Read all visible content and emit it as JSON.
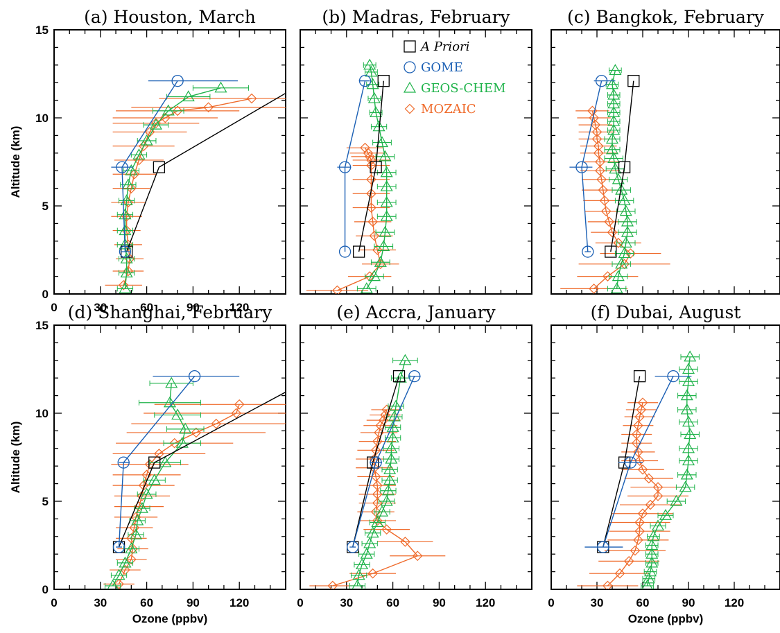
{
  "colors": {
    "apriori": "#000000",
    "gome": "#1a5fb4",
    "geoschem": "#1fb34a",
    "mozaic": "#ef6a2a"
  },
  "legend": [
    {
      "key": "apriori",
      "label": "A Priori",
      "marker": "square",
      "italic": true
    },
    {
      "key": "gome",
      "label": "GOME",
      "marker": "circle",
      "italic": false
    },
    {
      "key": "geoschem",
      "label": "GEOS-CHEM",
      "marker": "triangle",
      "italic": false
    },
    {
      "key": "mozaic",
      "label": "MOZAIC",
      "marker": "diamond",
      "italic": false
    }
  ],
  "chart_data": [
    {
      "type": "line",
      "title": "(a) Houston, March",
      "ylabel": "Altitude (km)",
      "xlabel": "",
      "xlim": [
        0,
        150
      ],
      "ylim": [
        0,
        15
      ],
      "xticks": [
        "0",
        "30",
        "60",
        "90",
        "120"
      ],
      "yticks": [
        "0",
        "5",
        "10",
        "15"
      ],
      "series": [
        {
          "key": "apriori",
          "x": [
            47,
            68,
            150
          ],
          "y": [
            2.4,
            7.2,
            11.4
          ],
          "marker_count": 2
        },
        {
          "key": "gome",
          "x": [
            46,
            44,
            80
          ],
          "y": [
            2.4,
            7.2,
            12.1
          ],
          "xerr": [
            [
              43,
              49
            ],
            [
              37,
              51
            ],
            [
              61,
              119
            ]
          ]
        },
        {
          "key": "geoschem",
          "x": [
            46,
            47,
            47,
            46,
            46,
            46,
            47,
            48,
            50,
            55,
            60,
            66,
            74,
            87,
            108
          ],
          "y": [
            0.3,
            1.2,
            2.0,
            2.8,
            3.6,
            4.5,
            5.3,
            6.2,
            7.0,
            7.9,
            8.7,
            9.6,
            10.4,
            11.2,
            11.7
          ],
          "xerr_half": [
            5,
            5,
            5,
            5,
            5,
            5,
            5,
            5,
            5,
            5,
            6,
            8,
            10,
            14,
            18
          ]
        },
        {
          "key": "mozaic",
          "x": [
            45,
            48,
            49,
            48,
            47,
            47,
            48,
            50,
            52,
            55,
            58,
            62,
            66,
            72,
            80,
            100,
            128
          ],
          "y": [
            0.5,
            1.3,
            2.0,
            2.8,
            3.6,
            4.4,
            5.2,
            6.0,
            6.8,
            7.6,
            8.4,
            9.2,
            9.7,
            10.0,
            10.4,
            10.6,
            11.1
          ],
          "xerr_half": [
            12,
            10,
            9,
            9,
            9,
            10,
            11,
            12,
            14,
            16,
            20,
            24,
            28,
            34,
            40,
            50,
            60
          ]
        }
      ]
    },
    {
      "type": "line",
      "title": "(b) Madras, February",
      "ylabel": "",
      "xlabel": "",
      "xlim": [
        0,
        150
      ],
      "ylim": [
        0,
        15
      ],
      "xticks": [],
      "yticks": [],
      "series": [
        {
          "key": "apriori",
          "x": [
            38,
            49,
            54
          ],
          "y": [
            2.4,
            7.2,
            12.1
          ]
        },
        {
          "key": "gome",
          "x": [
            29,
            29,
            42
          ],
          "y": [
            2.4,
            7.2,
            12.1
          ],
          "xerr": [
            [
              29,
              29
            ],
            [
              24,
              33
            ],
            [
              38,
              45
            ]
          ]
        },
        {
          "key": "geoschem",
          "x": [
            43,
            48,
            52,
            54,
            55,
            56,
            56,
            56,
            56,
            55,
            53,
            51,
            49,
            48,
            47,
            46,
            45
          ],
          "y": [
            0.3,
            1.0,
            1.8,
            2.7,
            3.5,
            4.4,
            5.2,
            6.1,
            6.9,
            7.8,
            8.6,
            9.5,
            10.3,
            11.1,
            11.9,
            12.6,
            13.0
          ],
          "xerr_half": [
            6,
            6,
            6,
            6,
            6,
            6,
            6,
            6,
            6,
            6,
            6,
            5,
            4,
            4,
            4,
            4,
            4
          ]
        },
        {
          "key": "mozaic",
          "x": [
            24,
            45,
            52,
            50,
            48,
            47,
            46,
            46,
            46,
            46,
            46,
            45,
            44,
            42
          ],
          "y": [
            0.2,
            1.0,
            1.7,
            2.5,
            3.3,
            4.1,
            4.9,
            5.7,
            6.5,
            7.3,
            7.6,
            7.8,
            8.0,
            8.3
          ],
          "xerr_half": [
            20,
            14,
            12,
            12,
            12,
            12,
            12,
            12,
            12,
            12,
            12,
            12,
            12,
            12
          ]
        }
      ]
    },
    {
      "type": "line",
      "title": "(c) Bangkok, February",
      "ylabel": "",
      "xlabel": "",
      "xlim": [
        0,
        150
      ],
      "ylim": [
        0,
        15
      ],
      "xticks": [],
      "yticks": [],
      "series": [
        {
          "key": "apriori",
          "x": [
            39,
            48,
            54
          ],
          "y": [
            2.4,
            7.2,
            12.1
          ]
        },
        {
          "key": "gome",
          "x": [
            24,
            20,
            33
          ],
          "y": [
            2.4,
            7.2,
            12.1
          ],
          "xerr": [
            [
              22,
              26
            ],
            [
              12,
              27
            ],
            [
              28,
              42
            ]
          ]
        },
        {
          "key": "geoschem",
          "x": [
            43,
            44,
            46,
            48,
            49,
            50,
            50,
            49,
            48,
            46,
            44,
            42,
            41,
            40,
            40,
            41,
            41,
            41,
            41,
            41,
            40,
            42
          ],
          "y": [
            0.3,
            1.0,
            1.7,
            2.3,
            2.9,
            3.5,
            4.1,
            4.7,
            5.3,
            5.9,
            6.5,
            7.1,
            7.7,
            8.2,
            8.8,
            9.3,
            9.8,
            10.3,
            10.8,
            11.3,
            11.9,
            12.7
          ],
          "xerr_half": [
            6,
            6,
            6,
            6,
            6,
            6,
            6,
            6,
            6,
            6,
            6,
            6,
            6,
            5,
            5,
            4,
            4,
            4,
            4,
            4,
            4,
            4
          ]
        },
        {
          "key": "mozaic",
          "x": [
            28,
            37,
            48,
            52,
            44,
            40,
            38,
            36,
            35,
            34,
            33,
            32,
            32,
            31,
            31,
            30,
            30,
            29,
            28,
            27
          ],
          "y": [
            0.3,
            1.0,
            1.7,
            2.3,
            2.9,
            3.5,
            4.1,
            4.7,
            5.3,
            5.9,
            6.5,
            7.0,
            7.5,
            8.0,
            8.4,
            8.8,
            9.2,
            9.6,
            10.0,
            10.4
          ],
          "xerr_half": [
            22,
            20,
            30,
            20,
            15,
            14,
            14,
            14,
            14,
            14,
            13,
            13,
            12,
            12,
            12,
            12,
            12,
            11,
            11,
            11
          ]
        }
      ]
    },
    {
      "type": "line",
      "title": "(d) Shanghai, February",
      "ylabel": "Altitude (km)",
      "xlabel": "Ozone (ppbv)",
      "xlim": [
        0,
        150
      ],
      "ylim": [
        0,
        15
      ],
      "xticks": [
        "0",
        "30",
        "60",
        "90",
        "120"
      ],
      "yticks": [
        "0",
        "5",
        "10",
        "15"
      ],
      "series": [
        {
          "key": "apriori",
          "x": [
            42,
            65,
            150
          ],
          "y": [
            2.4,
            7.2,
            11.2
          ],
          "marker_count": 2
        },
        {
          "key": "gome",
          "x": [
            42,
            45,
            91
          ],
          "y": [
            2.4,
            7.2,
            12.1
          ],
          "xerr": [
            [
              40,
              44
            ],
            [
              42,
              49
            ],
            [
              64,
              120
            ]
          ]
        },
        {
          "key": "geoschem",
          "x": [
            38,
            42,
            46,
            50,
            53,
            54,
            57,
            60,
            65,
            72,
            83,
            85,
            80,
            75,
            76
          ],
          "y": [
            0.2,
            0.8,
            1.5,
            2.3,
            3.1,
            3.9,
            4.6,
            5.4,
            6.2,
            7.2,
            8.3,
            9.1,
            9.9,
            10.6,
            11.7
          ],
          "xerr_half": [
            5,
            5,
            5,
            5,
            5,
            5,
            5,
            6,
            7,
            10,
            12,
            12,
            15,
            20,
            14
          ]
        },
        {
          "key": "mozaic",
          "x": [
            42,
            46,
            50,
            51,
            50,
            52,
            53,
            55,
            57,
            58,
            60,
            62,
            68,
            78,
            92,
            105,
            118,
            120
          ],
          "y": [
            0.3,
            1.1,
            1.7,
            2.3,
            2.9,
            3.5,
            4.1,
            4.7,
            5.3,
            5.9,
            6.5,
            7.1,
            7.7,
            8.3,
            8.9,
            9.4,
            10.0,
            10.5
          ],
          "xerr_half": [
            10,
            10,
            10,
            10,
            10,
            12,
            14,
            16,
            18,
            20,
            22,
            25,
            30,
            38,
            45,
            55,
            60,
            55
          ]
        }
      ]
    },
    {
      "type": "line",
      "title": "(e) Accra, January",
      "ylabel": "",
      "xlabel": "",
      "xlim": [
        0,
        150
      ],
      "ylim": [
        0,
        15
      ],
      "xticks": [
        "0",
        "30",
        "60",
        "90",
        "120"
      ],
      "yticks": [],
      "series": [
        {
          "key": "apriori",
          "x": [
            34,
            47,
            64
          ],
          "y": [
            2.4,
            7.2,
            12.1
          ]
        },
        {
          "key": "gome",
          "x": [
            34,
            49,
            74
          ],
          "y": [
            2.4,
            7.2,
            12.1
          ],
          "xerr": [
            [
              32,
              36
            ],
            [
              45,
              53
            ],
            [
              70,
              78
            ]
          ]
        },
        {
          "key": "geoschem",
          "x": [
            37,
            38,
            40,
            43,
            45,
            47,
            50,
            53,
            56,
            57,
            58,
            58,
            59,
            59,
            60,
            60,
            61,
            62,
            65,
            68
          ],
          "y": [
            0.2,
            0.8,
            1.4,
            2.0,
            2.6,
            3.2,
            3.8,
            4.4,
            5.0,
            5.6,
            6.2,
            6.8,
            7.4,
            8.0,
            8.6,
            9.2,
            9.8,
            10.4,
            12.0,
            13.0
          ],
          "xerr_half": [
            5,
            5,
            5,
            5,
            5,
            5,
            5,
            5,
            5,
            5,
            5,
            5,
            5,
            5,
            5,
            5,
            5,
            5,
            6,
            8
          ]
        },
        {
          "key": "mozaic",
          "x": [
            21,
            47,
            76,
            68,
            56,
            50,
            49,
            50,
            50,
            50,
            49,
            48,
            48,
            49,
            50,
            51,
            52,
            54,
            55,
            56
          ],
          "y": [
            0.2,
            0.9,
            1.9,
            2.7,
            3.4,
            3.9,
            4.4,
            4.9,
            5.4,
            5.9,
            6.4,
            6.9,
            7.4,
            7.9,
            8.4,
            8.9,
            9.3,
            9.6,
            9.9,
            10.2
          ],
          "xerr_half": [
            15,
            15,
            18,
            18,
            15,
            12,
            12,
            12,
            12,
            12,
            12,
            12,
            12,
            12,
            12,
            12,
            11,
            11,
            10,
            10
          ]
        }
      ]
    },
    {
      "type": "line",
      "title": "(f) Dubai, August",
      "ylabel": "",
      "xlabel": "Ozone (ppbv)",
      "xlim": [
        0,
        150
      ],
      "ylim": [
        0,
        15
      ],
      "xticks": [
        "0",
        "30",
        "60",
        "90",
        "120"
      ],
      "yticks": [],
      "series": [
        {
          "key": "apriori",
          "x": [
            34,
            48,
            58
          ],
          "y": [
            2.4,
            7.2,
            12.1
          ]
        },
        {
          "key": "gome",
          "x": [
            34,
            52,
            80
          ],
          "y": [
            2.4,
            7.2,
            12.1
          ],
          "xerr": [
            [
              22,
              47
            ],
            [
              44,
              60
            ],
            [
              68,
              92
            ]
          ]
        },
        {
          "key": "geoschem",
          "x": [
            63,
            64,
            65,
            66,
            66,
            66,
            67,
            70,
            75,
            82,
            88,
            89,
            90,
            90,
            91,
            90,
            89,
            89,
            90,
            90,
            91
          ],
          "y": [
            0.2,
            0.6,
            1.0,
            1.5,
            2.0,
            2.5,
            3.0,
            3.6,
            4.2,
            5.0,
            5.8,
            6.5,
            7.3,
            8.0,
            8.8,
            9.5,
            10.2,
            11.0,
            11.8,
            12.5,
            13.2
          ],
          "xerr_half": [
            4,
            4,
            4,
            4,
            4,
            4,
            4,
            5,
            5,
            6,
            6,
            6,
            6,
            6,
            6,
            6,
            6,
            6,
            6,
            6,
            6
          ]
        },
        {
          "key": "mozaic",
          "x": [
            37,
            45,
            51,
            55,
            57,
            58,
            58,
            60,
            65,
            70,
            70,
            64,
            60,
            58,
            57,
            56,
            56,
            57,
            58,
            59,
            60
          ],
          "y": [
            0.2,
            0.9,
            1.6,
            2.2,
            2.8,
            3.3,
            3.8,
            4.3,
            4.8,
            5.3,
            5.8,
            6.3,
            6.8,
            7.3,
            7.8,
            8.3,
            8.8,
            9.3,
            9.8,
            10.2,
            10.6
          ],
          "xerr_half": [
            20,
            20,
            20,
            20,
            20,
            20,
            20,
            20,
            20,
            20,
            18,
            16,
            14,
            12,
            11,
            10,
            10,
            10,
            10,
            10,
            10
          ]
        }
      ]
    }
  ]
}
